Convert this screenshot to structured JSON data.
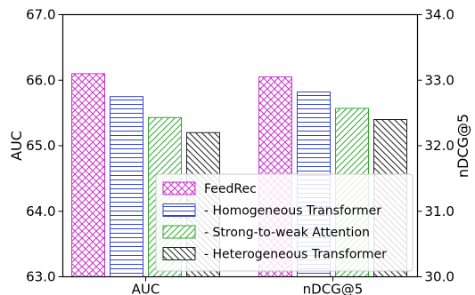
{
  "chart_data": {
    "type": "bar",
    "categories": [
      "AUC",
      "nDCG@5"
    ],
    "series": [
      {
        "name": "FeedRec",
        "values": [
          66.1,
          33.05
        ],
        "color": "#cc33cc",
        "pattern": "crosshatch"
      },
      {
        "name": "- Homogeneous Transformer",
        "values": [
          65.75,
          32.82
        ],
        "color": "#3344cc",
        "pattern": "horizontal"
      },
      {
        "name": "- Strong-to-weak Attention",
        "values": [
          65.43,
          32.57
        ],
        "color": "#33aa33",
        "pattern": "diagonal"
      },
      {
        "name": "- Heterogeneous Transformer",
        "values": [
          65.2,
          32.4
        ],
        "color": "#222222",
        "pattern": "backdiagonal"
      }
    ],
    "axis_map": [
      "left",
      "right"
    ],
    "ylabel": "AUC",
    "y2label": "nDCG@5",
    "ylim": [
      63.0,
      67.0
    ],
    "y2lim": [
      30.0,
      34.0
    ],
    "yticks": [
      "63.0",
      "64.0",
      "65.0",
      "66.0",
      "67.0"
    ],
    "y2ticks": [
      "30.0",
      "31.0",
      "32.0",
      "33.0",
      "34.0"
    ],
    "legend_position": "lower-right",
    "grid": false
  }
}
